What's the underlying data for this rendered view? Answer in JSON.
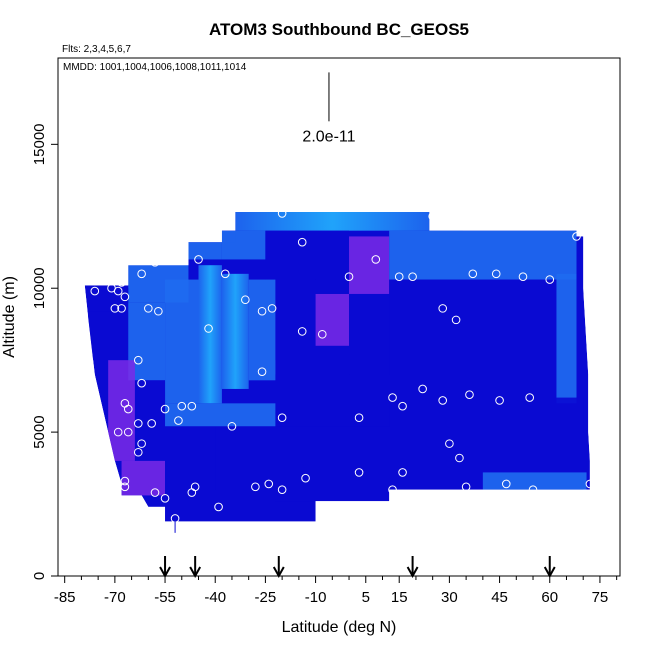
{
  "chart_data": {
    "type": "heatmap",
    "title": "ATOM3 Southbound BC_GEOS5",
    "flights_label": "Flts: 2,3,4,5,6,7",
    "mmdd_label": "MMDD: 1001,1004,1006,1008,1011,1014",
    "xlabel": "Latitude (deg N)",
    "ylabel": "Altitude (m)",
    "xlim": [
      -87,
      81
    ],
    "ylim": [
      0,
      18000
    ],
    "x_ticks": [
      -85,
      -70,
      -55,
      -40,
      -25,
      -10,
      5,
      15,
      30,
      45,
      60,
      75
    ],
    "x_tick_labels": [
      "-85",
      "-70",
      "-55",
      "-40",
      "-25",
      "-10",
      "5",
      "15",
      "30",
      "45",
      "60",
      "75"
    ],
    "y_ticks": [
      0,
      5000,
      10000,
      15000
    ],
    "y_tick_labels": [
      "0",
      "5000",
      "10000",
      "15000"
    ],
    "scale_label": "2.0e-11",
    "scale_bar": {
      "x": -6,
      "y_top": 17500,
      "y_bottom": 15800
    },
    "arrow_latitudes": [
      -55,
      -46,
      -21,
      19,
      60
    ],
    "colors": {
      "low": "#0a0ad2",
      "mid": "#1f6cf0",
      "high": "#22b4ff",
      "purple": "#7a2ae6",
      "marker": "#ffffff",
      "arrow": "#000000"
    },
    "field_cells": [
      {
        "x0": -34,
        "x1": 24,
        "y0": 12000,
        "y1": 12650,
        "v": "high"
      },
      {
        "x0": 24,
        "x1": 34,
        "y0": 12000,
        "y1": 12500,
        "v": "mid"
      },
      {
        "x0": -38,
        "x1": -34,
        "y0": 11600,
        "y1": 12000,
        "v": "low"
      },
      {
        "x0": -48,
        "x1": -38,
        "y0": 11000,
        "y1": 11600,
        "v": "mid"
      },
      {
        "x0": -38,
        "x1": -25,
        "y0": 11000,
        "y1": 12000,
        "v": "mid"
      },
      {
        "x0": -25,
        "x1": 0,
        "y0": 10300,
        "y1": 12000,
        "v": "low"
      },
      {
        "x0": 0,
        "x1": 12,
        "y0": 9800,
        "y1": 11800,
        "v": "purple"
      },
      {
        "x0": 12,
        "x1": 68,
        "y0": 10300,
        "y1": 12000,
        "v": "mid"
      },
      {
        "x0": -66,
        "x1": -48,
        "y0": 9500,
        "y1": 10800,
        "v": "mid"
      },
      {
        "x0": -78,
        "x1": -66,
        "y0": 9200,
        "y1": 10000,
        "v": "low"
      },
      {
        "x0": -78,
        "x1": -66,
        "y0": 7500,
        "y1": 9200,
        "v": "low"
      },
      {
        "x0": -66,
        "x1": -55,
        "y0": 6800,
        "y1": 9500,
        "v": "mid"
      },
      {
        "x0": -55,
        "x1": -45,
        "y0": 6000,
        "y1": 10300,
        "v": "mid"
      },
      {
        "x0": -45,
        "x1": -38,
        "y0": 6000,
        "y1": 10800,
        "v": "high"
      },
      {
        "x0": -38,
        "x1": -30,
        "y0": 6500,
        "y1": 10500,
        "v": "high"
      },
      {
        "x0": -30,
        "x1": -22,
        "y0": 6800,
        "y1": 10300,
        "v": "mid"
      },
      {
        "x0": -22,
        "x1": -10,
        "y0": 7500,
        "y1": 10300,
        "v": "low"
      },
      {
        "x0": -10,
        "x1": 0,
        "y0": 8000,
        "y1": 9800,
        "v": "purple"
      },
      {
        "x0": 0,
        "x1": 12,
        "y0": 7000,
        "y1": 9800,
        "v": "low"
      },
      {
        "x0": 12,
        "x1": 62,
        "y0": 6200,
        "y1": 10300,
        "v": "low"
      },
      {
        "x0": 62,
        "x1": 68,
        "y0": 6000,
        "y1": 10500,
        "v": "mid"
      },
      {
        "x0": 68,
        "x1": 70,
        "y0": 5000,
        "y1": 11800,
        "v": "low"
      },
      {
        "x0": -72,
        "x1": -64,
        "y0": 4000,
        "y1": 7500,
        "v": "purple"
      },
      {
        "x0": -64,
        "x1": -55,
        "y0": 4000,
        "y1": 6800,
        "v": "low"
      },
      {
        "x0": -55,
        "x1": -22,
        "y0": 5200,
        "y1": 6000,
        "v": "mid"
      },
      {
        "x0": -22,
        "x1": 12,
        "y0": 5200,
        "y1": 7000,
        "v": "low"
      },
      {
        "x0": 12,
        "x1": 70,
        "y0": 3000,
        "y1": 6200,
        "v": "low"
      },
      {
        "x0": -68,
        "x1": -55,
        "y0": 2800,
        "y1": 4000,
        "v": "purple"
      },
      {
        "x0": -55,
        "x1": -40,
        "y0": 2400,
        "y1": 5200,
        "v": "low"
      },
      {
        "x0": -40,
        "x1": -22,
        "y0": 3000,
        "y1": 5200,
        "v": "low"
      },
      {
        "x0": -22,
        "x1": 12,
        "y0": 2600,
        "y1": 5200,
        "v": "low"
      },
      {
        "x0": 40,
        "x1": 71,
        "y0": 3000,
        "y1": 3600,
        "v": "mid"
      },
      {
        "x0": -55,
        "x1": -10,
        "y0": 1900,
        "y1": 2600,
        "v": "low"
      }
    ],
    "field_outline": [
      [
        -79,
        10100
      ],
      [
        -66,
        10100
      ],
      [
        -66,
        10800
      ],
      [
        -48,
        10800
      ],
      [
        -48,
        11600
      ],
      [
        -38,
        11600
      ],
      [
        -38,
        12000
      ],
      [
        -34,
        12000
      ],
      [
        -34,
        12650
      ],
      [
        24,
        12650
      ],
      [
        24,
        12000
      ],
      [
        34,
        12000
      ],
      [
        34,
        12000
      ],
      [
        68,
        12000
      ],
      [
        68,
        11800
      ],
      [
        70,
        11800
      ],
      [
        70,
        10000
      ],
      [
        70.5,
        9000
      ],
      [
        71,
        8000
      ],
      [
        71.5,
        7000
      ],
      [
        71.5,
        5000
      ],
      [
        72,
        4000
      ],
      [
        72,
        3000
      ],
      [
        40,
        3000
      ],
      [
        12,
        3000
      ],
      [
        12,
        2600
      ],
      [
        -10,
        2600
      ],
      [
        -10,
        1900
      ],
      [
        -55,
        1900
      ],
      [
        -55,
        2400
      ],
      [
        -60,
        2400
      ],
      [
        -62,
        2800
      ],
      [
        -68,
        2800
      ],
      [
        -68,
        3200
      ],
      [
        -70,
        4000
      ],
      [
        -72,
        5000
      ],
      [
        -74,
        6000
      ],
      [
        -76,
        7000
      ],
      [
        -77,
        8000
      ],
      [
        -78,
        9000
      ],
      [
        -79,
        10100
      ]
    ],
    "observations": [
      [
        -20,
        12600
      ],
      [
        25,
        12500
      ],
      [
        68,
        11800
      ],
      [
        -45,
        11000
      ],
      [
        -14,
        11600
      ],
      [
        8,
        11000
      ],
      [
        -58,
        10900
      ],
      [
        -62,
        10500
      ],
      [
        -37,
        10500
      ],
      [
        0,
        10400
      ],
      [
        15,
        10400
      ],
      [
        19,
        10400
      ],
      [
        37,
        10500
      ],
      [
        44,
        10500
      ],
      [
        52,
        10400
      ],
      [
        60,
        10300
      ],
      [
        -82,
        9900
      ],
      [
        -76,
        9900
      ],
      [
        -71,
        10000
      ],
      [
        -69,
        9900
      ],
      [
        -68,
        10200
      ],
      [
        -67,
        9700
      ],
      [
        -60,
        9300
      ],
      [
        -57,
        9200
      ],
      [
        -31,
        9600
      ],
      [
        -26,
        9200
      ],
      [
        -23,
        9300
      ],
      [
        28,
        9300
      ],
      [
        32,
        8900
      ],
      [
        -70,
        9300
      ],
      [
        -68,
        9300
      ],
      [
        -42,
        8600
      ],
      [
        -14,
        8500
      ],
      [
        -8,
        8400
      ],
      [
        -63,
        7500
      ],
      [
        -26,
        7100
      ],
      [
        -62,
        6700
      ],
      [
        -67,
        6000
      ],
      [
        -66,
        5800
      ],
      [
        -55,
        5800
      ],
      [
        -50,
        5900
      ],
      [
        -47,
        5900
      ],
      [
        13,
        6200
      ],
      [
        16,
        5900
      ],
      [
        22,
        6500
      ],
      [
        28,
        6100
      ],
      [
        36,
        6300
      ],
      [
        45,
        6100
      ],
      [
        54,
        6200
      ],
      [
        -63,
        5300
      ],
      [
        -59,
        5300
      ],
      [
        -51,
        5400
      ],
      [
        -35,
        5200
      ],
      [
        -20,
        5500
      ],
      [
        3,
        5500
      ],
      [
        -69,
        5000
      ],
      [
        -66,
        5000
      ],
      [
        -62,
        4600
      ],
      [
        -63,
        4300
      ],
      [
        30,
        4600
      ],
      [
        33,
        4100
      ],
      [
        3,
        3600
      ],
      [
        16,
        3600
      ],
      [
        -13,
        3400
      ],
      [
        -67,
        3300
      ],
      [
        -67,
        3100
      ],
      [
        -58,
        2900
      ],
      [
        -55,
        2700
      ],
      [
        -46,
        3100
      ],
      [
        -47,
        2900
      ],
      [
        -28,
        3100
      ],
      [
        -24,
        3200
      ],
      [
        -20,
        3000
      ],
      [
        13,
        3000
      ],
      [
        35,
        3100
      ],
      [
        47,
        3200
      ],
      [
        55,
        3000
      ],
      [
        72,
        3200
      ],
      [
        -39,
        2400
      ],
      [
        -3,
        2400
      ],
      [
        -52,
        2000
      ]
    ]
  }
}
